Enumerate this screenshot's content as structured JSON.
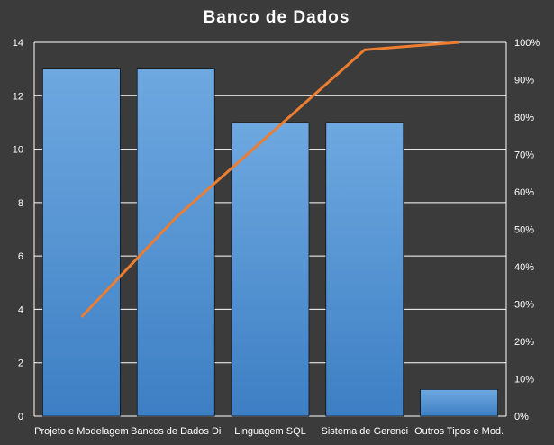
{
  "chart_data": {
    "type": "bar",
    "title": "Banco  de  Dados",
    "categories": [
      "Projeto e Modelagem",
      "Bancos de Dados Di",
      "Linguagem SQL",
      "Sistema de Gerenci",
      "Outros Tipos e Mod."
    ],
    "values": [
      13,
      13,
      11,
      11,
      1
    ],
    "ylim": [
      0,
      14
    ],
    "yticks": [
      "0",
      "2",
      "4",
      "6",
      "8",
      "10",
      "12",
      "14"
    ],
    "series_line": {
      "axis": "secondary",
      "values": [
        26.5,
        53.1,
        75.5,
        98.0,
        100.0
      ]
    },
    "y2lim": [
      0,
      100
    ],
    "y2ticks": [
      "0%",
      "10%",
      "20%",
      "30%",
      "40%",
      "50%",
      "60%",
      "70%",
      "80%",
      "90%",
      "100%"
    ],
    "grid": true,
    "legend": "none",
    "colors": {
      "background": "#3b3b3b",
      "bar": "#5b9bd5",
      "bar_top": "#6ea8e0",
      "bar_bottom": "#3d7fc4",
      "line": "#ed7d31",
      "grid": "#ffffff",
      "text": "#ffffff"
    }
  }
}
